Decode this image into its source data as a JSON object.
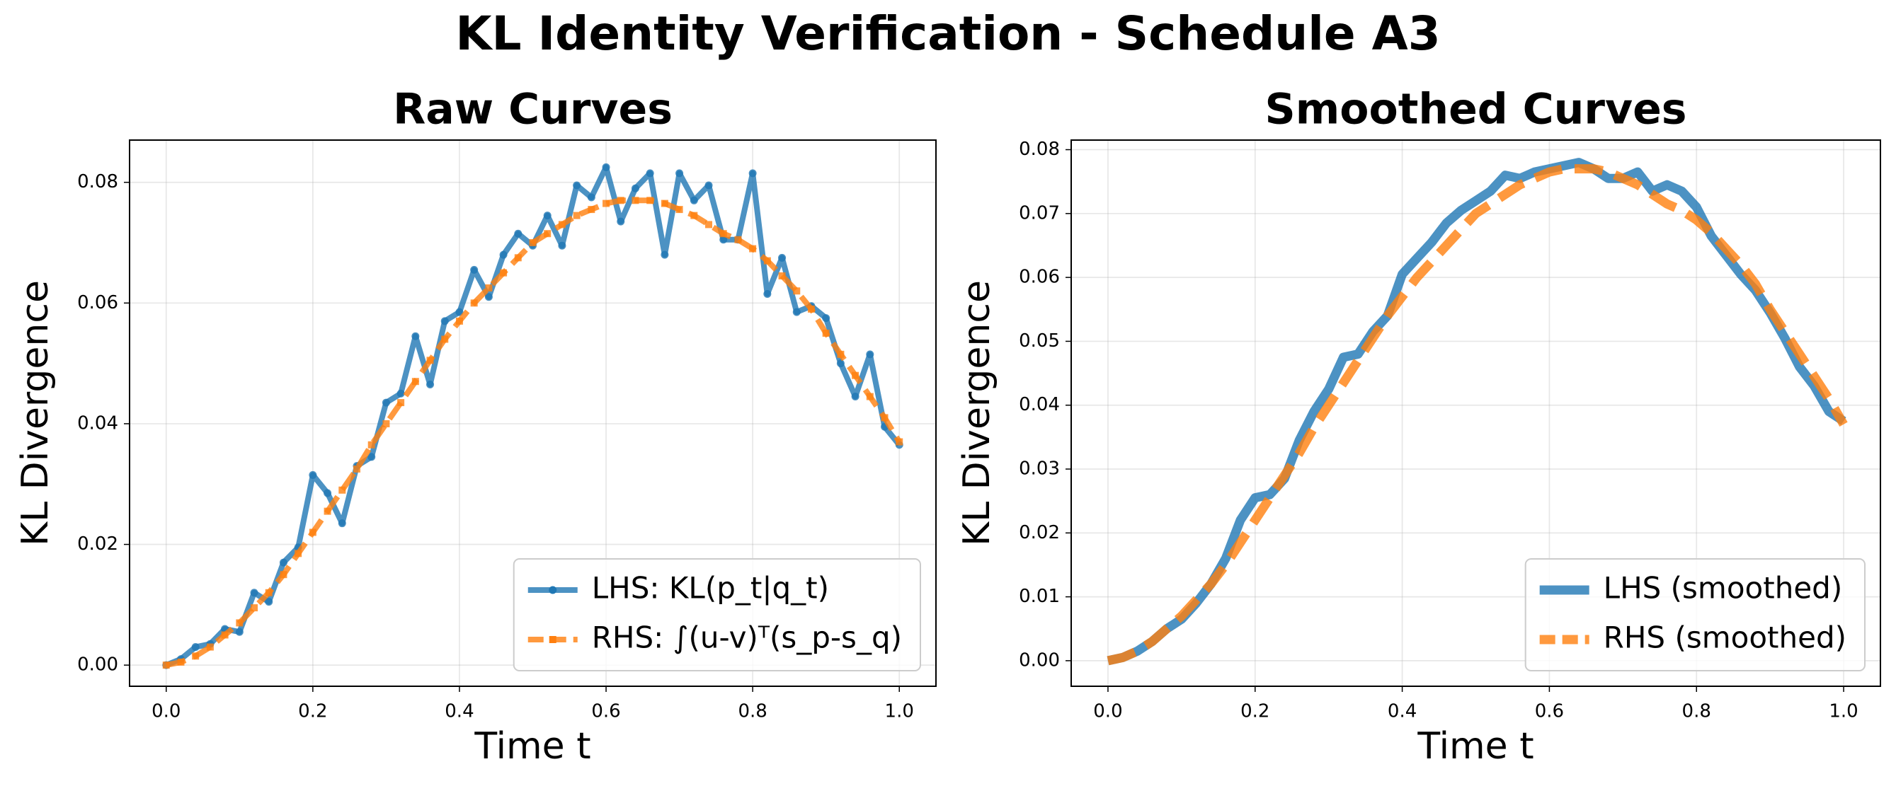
{
  "title": "KL Identity Verification - Schedule A3",
  "chart_data": [
    {
      "type": "line",
      "title": "Raw Curves",
      "xlabel": "Time t",
      "ylabel": "KL Divergence",
      "x": [
        0,
        0.02,
        0.04,
        0.06,
        0.08,
        0.1,
        0.12,
        0.14,
        0.16,
        0.18,
        0.2,
        0.22,
        0.24,
        0.26,
        0.28,
        0.3,
        0.32,
        0.34,
        0.36,
        0.38,
        0.4,
        0.42,
        0.44,
        0.46,
        0.48,
        0.5,
        0.52,
        0.54,
        0.56,
        0.58,
        0.6,
        0.62,
        0.64,
        0.66,
        0.68,
        0.7,
        0.72,
        0.74,
        0.76,
        0.78,
        0.8,
        0.82,
        0.84,
        0.86,
        0.88,
        0.9,
        0.92,
        0.94,
        0.96,
        0.98,
        1.0
      ],
      "series": [
        {
          "name": "LHS: KL(p_t|q_t)",
          "color": "#1f77b4",
          "linestyle": "solid",
          "marker": "o",
          "values": [
            0,
            0.001,
            0.003,
            0.0035,
            0.006,
            0.0055,
            0.012,
            0.0105,
            0.017,
            0.0195,
            0.0315,
            0.0285,
            0.0235,
            0.033,
            0.0345,
            0.0435,
            0.045,
            0.0545,
            0.0465,
            0.057,
            0.0585,
            0.0655,
            0.061,
            0.068,
            0.0715,
            0.0695,
            0.0745,
            0.0695,
            0.0795,
            0.0775,
            0.0825,
            0.0735,
            0.079,
            0.0815,
            0.068,
            0.0815,
            0.077,
            0.0795,
            0.0705,
            0.0705,
            0.0815,
            0.0615,
            0.0675,
            0.0585,
            0.0595,
            0.0575,
            0.05,
            0.0445,
            0.0515,
            0.0395,
            0.0365
          ]
        },
        {
          "name": "RHS: ∫(u-v)ᵀ(s_p-s_q)",
          "color": "#ff7f0e",
          "linestyle": "dashed",
          "marker": "s",
          "values": [
            0,
            0.0005,
            0.0015,
            0.003,
            0.005,
            0.007,
            0.0095,
            0.012,
            0.015,
            0.0185,
            0.022,
            0.0255,
            0.029,
            0.0325,
            0.0365,
            0.04,
            0.0435,
            0.047,
            0.0505,
            0.054,
            0.057,
            0.06,
            0.0625,
            0.065,
            0.0675,
            0.07,
            0.0715,
            0.073,
            0.0745,
            0.0755,
            0.0765,
            0.077,
            0.077,
            0.077,
            0.0765,
            0.0755,
            0.0745,
            0.073,
            0.0715,
            0.0705,
            0.069,
            0.067,
            0.0645,
            0.062,
            0.059,
            0.055,
            0.0515,
            0.048,
            0.0445,
            0.041,
            0.037
          ]
        }
      ],
      "xlim": [
        -0.05,
        1.05
      ],
      "xticks": [
        {
          "value": 0,
          "label": "0.0"
        },
        {
          "value": 0.2,
          "label": "0.2"
        },
        {
          "value": 0.4,
          "label": "0.4"
        },
        {
          "value": 0.6,
          "label": "0.6"
        },
        {
          "value": 0.8,
          "label": "0.8"
        },
        {
          "value": 1,
          "label": "1.0"
        }
      ],
      "ylim": [
        -0.0035,
        0.087
      ],
      "yticks": [
        {
          "value": 0,
          "label": "0.00"
        },
        {
          "value": 0.02,
          "label": "0.02"
        },
        {
          "value": 0.04,
          "label": "0.04"
        },
        {
          "value": 0.06,
          "label": "0.06"
        },
        {
          "value": 0.08,
          "label": "0.08"
        }
      ],
      "grid": true,
      "legend": "lower right"
    },
    {
      "type": "line",
      "title": "Smoothed Curves",
      "xlabel": "Time t",
      "ylabel": "KL Divergence",
      "x": [
        0,
        0.02,
        0.04,
        0.06,
        0.08,
        0.1,
        0.12,
        0.14,
        0.16,
        0.18,
        0.2,
        0.22,
        0.24,
        0.26,
        0.28,
        0.3,
        0.32,
        0.34,
        0.36,
        0.38,
        0.4,
        0.42,
        0.44,
        0.46,
        0.48,
        0.5,
        0.52,
        0.54,
        0.56,
        0.58,
        0.6,
        0.62,
        0.64,
        0.66,
        0.68,
        0.7,
        0.72,
        0.74,
        0.76,
        0.78,
        0.8,
        0.82,
        0.84,
        0.86,
        0.88,
        0.9,
        0.92,
        0.94,
        0.96,
        0.98,
        1.0
      ],
      "series": [
        {
          "name": "LHS (smoothed)",
          "color": "#1f77b4",
          "linestyle": "solid",
          "values": [
            0,
            0.0005,
            0.0015,
            0.003,
            0.005,
            0.0065,
            0.009,
            0.012,
            0.016,
            0.022,
            0.0255,
            0.026,
            0.0285,
            0.0345,
            0.039,
            0.0425,
            0.0475,
            0.048,
            0.0515,
            0.054,
            0.0605,
            0.063,
            0.0655,
            0.0685,
            0.0705,
            0.072,
            0.0735,
            0.076,
            0.0755,
            0.0765,
            0.077,
            0.0775,
            0.078,
            0.077,
            0.0755,
            0.0755,
            0.0765,
            0.0735,
            0.0745,
            0.0735,
            0.071,
            0.0665,
            0.0635,
            0.0605,
            0.058,
            0.0545,
            0.0505,
            0.046,
            0.043,
            0.039,
            0.0375
          ]
        },
        {
          "name": "RHS (smoothed)",
          "color": "#ff7f0e",
          "linestyle": "dashed",
          "values": [
            0,
            0.0005,
            0.0015,
            0.003,
            0.005,
            0.007,
            0.0095,
            0.012,
            0.015,
            0.0185,
            0.022,
            0.0255,
            0.029,
            0.0325,
            0.0365,
            0.04,
            0.0435,
            0.047,
            0.0505,
            0.054,
            0.057,
            0.06,
            0.0625,
            0.065,
            0.0675,
            0.07,
            0.0715,
            0.073,
            0.0745,
            0.0755,
            0.0765,
            0.077,
            0.077,
            0.077,
            0.0765,
            0.0755,
            0.0745,
            0.073,
            0.0715,
            0.0705,
            0.069,
            0.067,
            0.0645,
            0.062,
            0.059,
            0.055,
            0.0515,
            0.048,
            0.0445,
            0.041,
            0.037
          ]
        }
      ],
      "xlim": [
        -0.05,
        1.05
      ],
      "xticks": [
        {
          "value": 0,
          "label": "0.0"
        },
        {
          "value": 0.2,
          "label": "0.2"
        },
        {
          "value": 0.4,
          "label": "0.4"
        },
        {
          "value": 0.6,
          "label": "0.6"
        },
        {
          "value": 0.8,
          "label": "0.8"
        },
        {
          "value": 1,
          "label": "1.0"
        }
      ],
      "ylim": [
        -0.004,
        0.0815
      ],
      "yticks": [
        {
          "value": 0,
          "label": "0.00"
        },
        {
          "value": 0.01,
          "label": "0.01"
        },
        {
          "value": 0.02,
          "label": "0.02"
        },
        {
          "value": 0.03,
          "label": "0.03"
        },
        {
          "value": 0.04,
          "label": "0.04"
        },
        {
          "value": 0.05,
          "label": "0.05"
        },
        {
          "value": 0.06,
          "label": "0.06"
        },
        {
          "value": 0.07,
          "label": "0.07"
        },
        {
          "value": 0.08,
          "label": "0.08"
        }
      ],
      "grid": true,
      "legend": "lower right"
    }
  ]
}
